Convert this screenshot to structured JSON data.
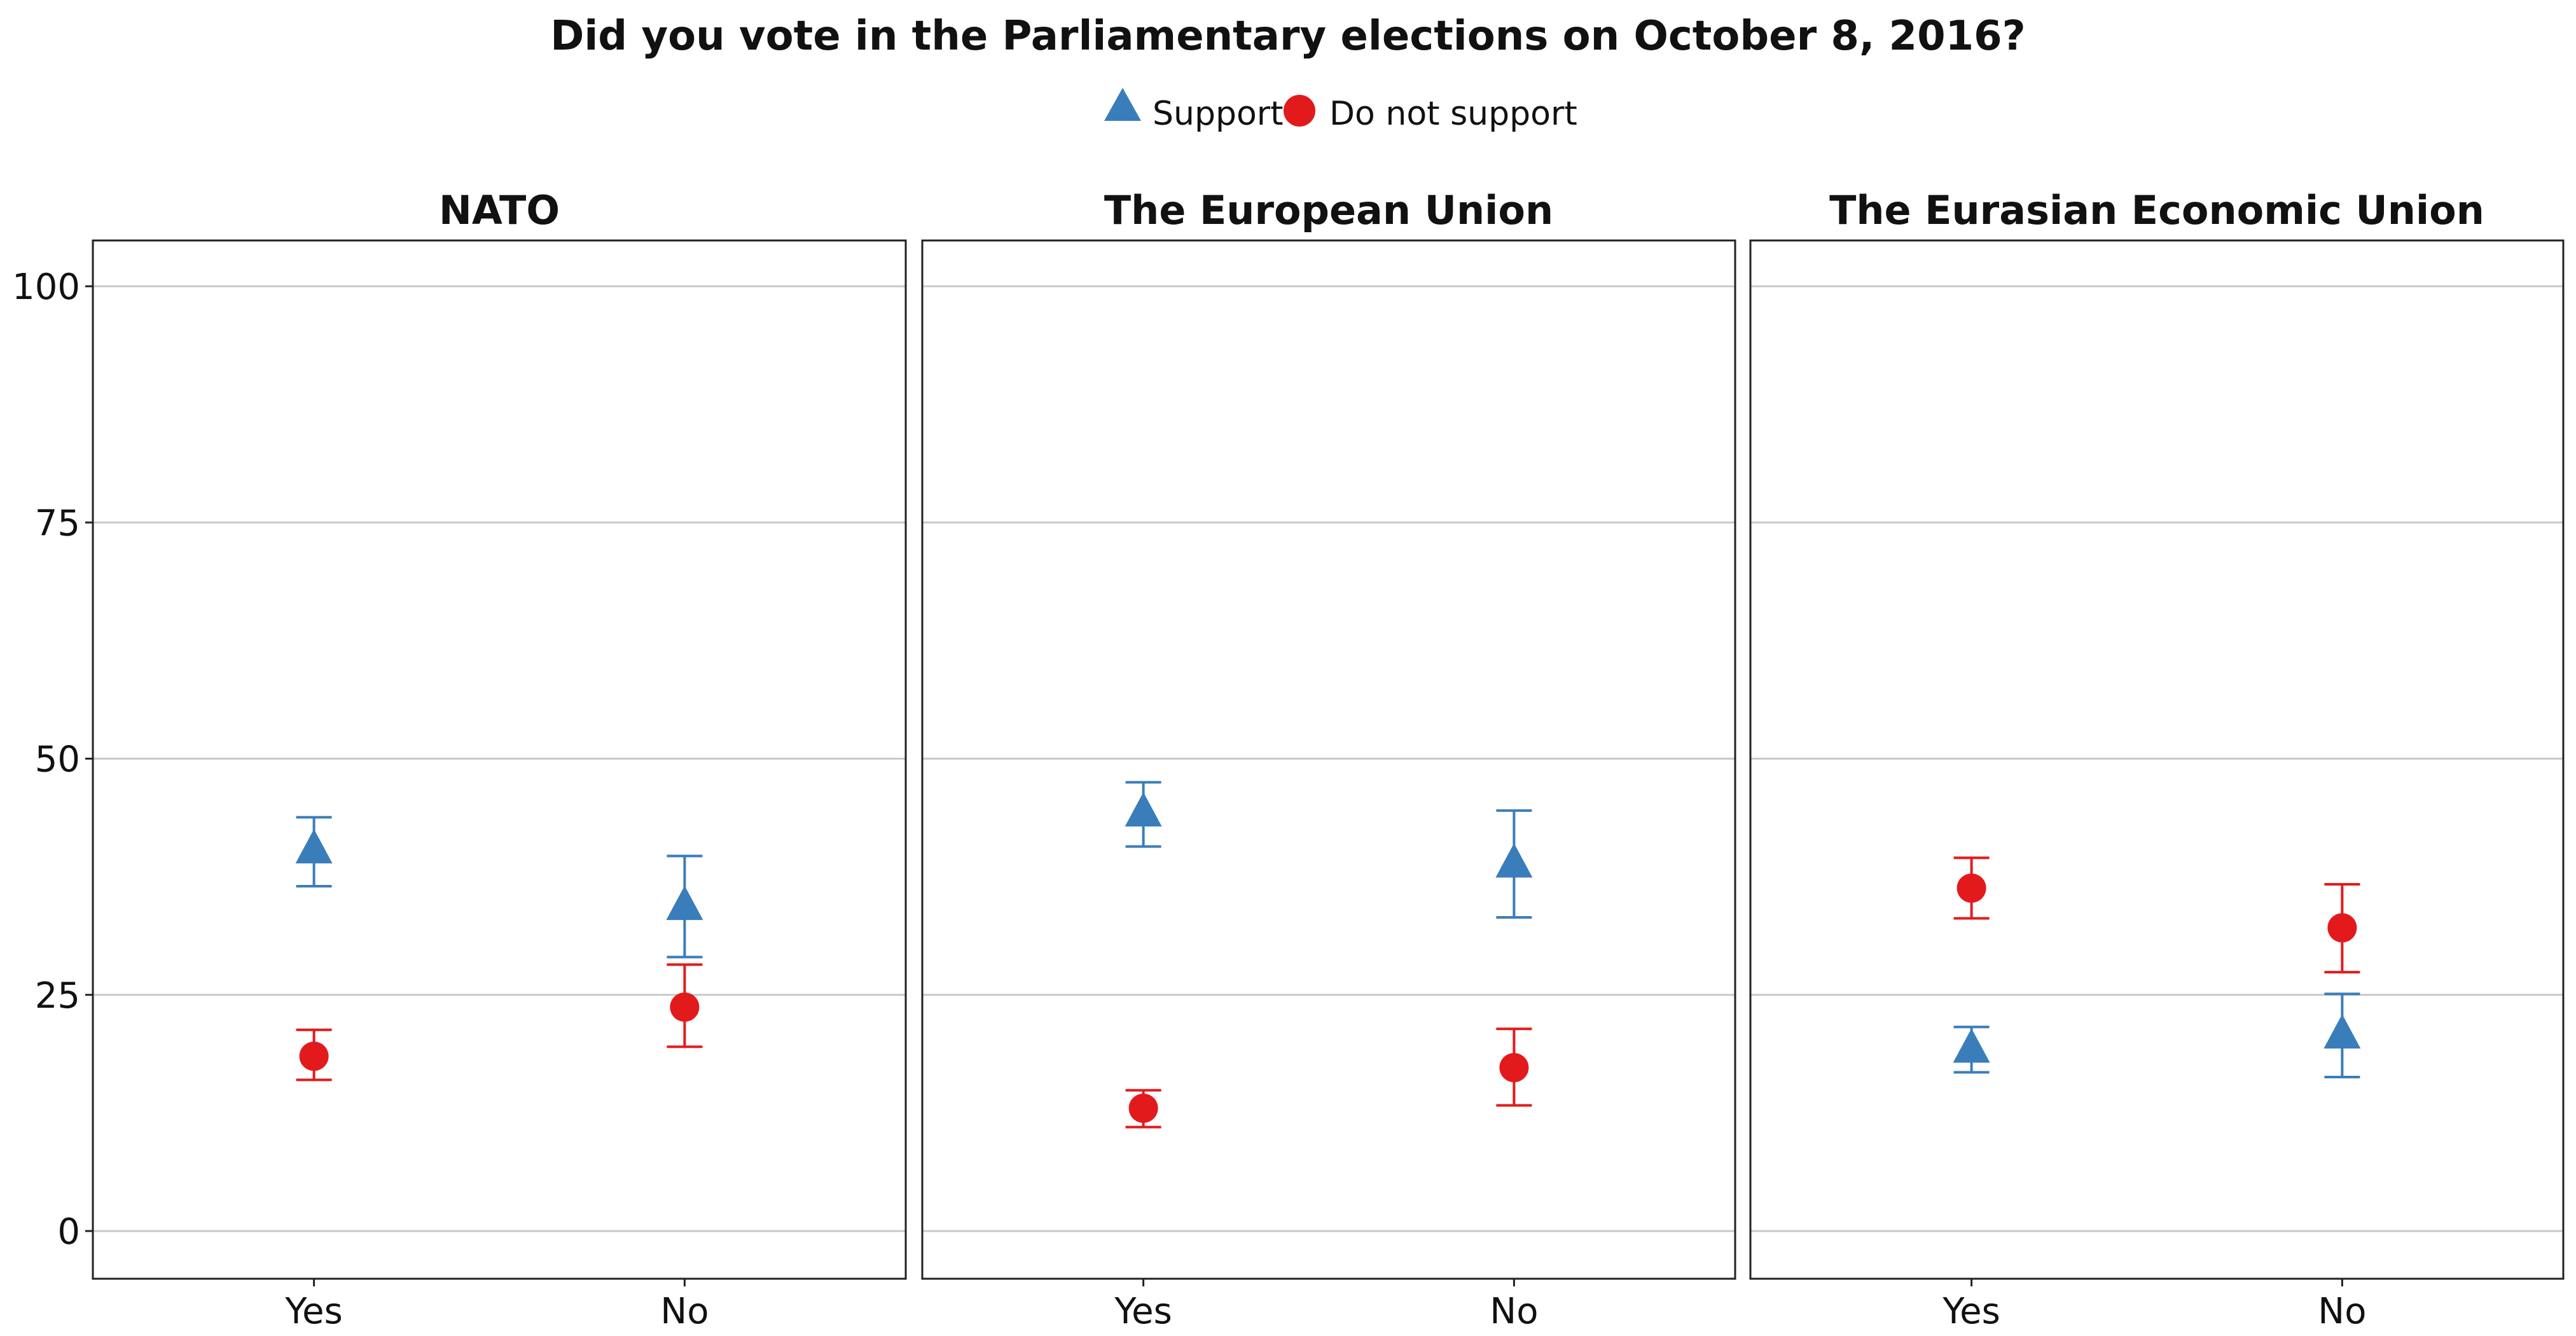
{
  "chart_data": {
    "type": "scatter",
    "title": "Did you vote in the Parliamentary elections on October 8, 2016?",
    "legend": {
      "placement": "top-center",
      "entries": [
        {
          "name": "Support",
          "marker": "triangle",
          "color": "#3a7dbb"
        },
        {
          "name": "Do not support",
          "marker": "circle",
          "color": "#e31a1c"
        }
      ]
    },
    "categories": [
      "Yes",
      "No"
    ],
    "ylim": [
      -5,
      105
    ],
    "yticks": [
      0,
      25,
      50,
      75,
      100
    ],
    "ytick_labels": [
      "0",
      "25",
      "50",
      "75",
      "100"
    ],
    "grid": "horizontal",
    "panels": [
      {
        "title": "NATO",
        "series": [
          {
            "name": "Support",
            "values": [
              40.3,
              34.3
            ],
            "lower": [
              36.5,
              29.0
            ],
            "upper": [
              43.8,
              39.7
            ]
          },
          {
            "name": "Do not support",
            "values": [
              18.5,
              23.7
            ],
            "lower": [
              16.0,
              19.5
            ],
            "upper": [
              21.3,
              28.2
            ]
          }
        ]
      },
      {
        "title": "The European Union",
        "series": [
          {
            "name": "Support",
            "values": [
              44.2,
              38.8
            ],
            "lower": [
              40.7,
              33.2
            ],
            "upper": [
              47.5,
              44.5
            ]
          },
          {
            "name": "Do not support",
            "values": [
              13.0,
              17.3
            ],
            "lower": [
              11.0,
              13.3
            ],
            "upper": [
              14.9,
              21.4
            ]
          }
        ]
      },
      {
        "title": "The Eurasian Economic Union",
        "series": [
          {
            "name": "Support",
            "values": [
              19.2,
              20.7
            ],
            "lower": [
              16.8,
              16.3
            ],
            "upper": [
              21.6,
              25.1
            ]
          },
          {
            "name": "Do not support",
            "values": [
              36.3,
              32.1
            ],
            "lower": [
              33.1,
              27.4
            ],
            "upper": [
              39.5,
              36.7
            ]
          }
        ]
      }
    ]
  }
}
